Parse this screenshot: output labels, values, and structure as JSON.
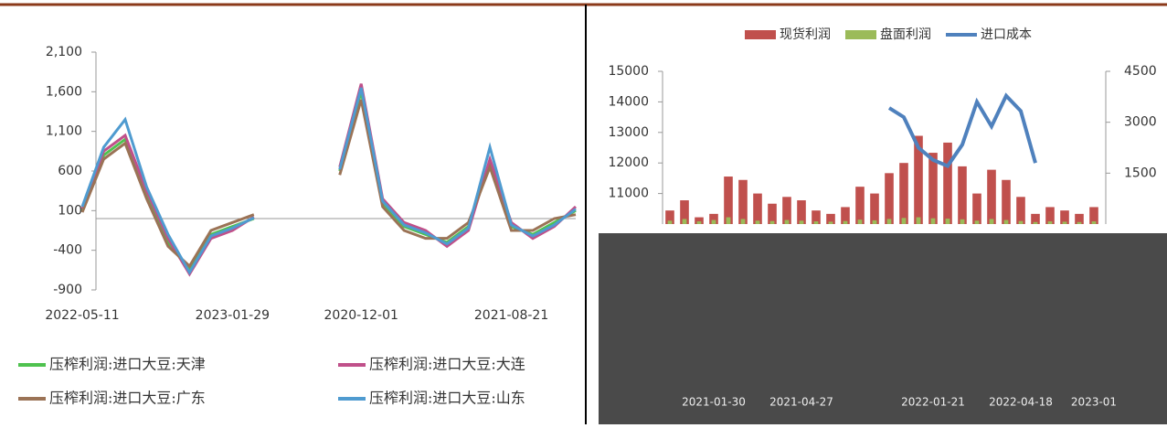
{
  "chart_data": [
    {
      "type": "line",
      "categories": [
        "2022-05-11",
        null,
        null,
        null,
        null,
        null,
        null,
        "2023-01-29",
        null,
        null,
        null,
        null,
        null,
        "2020-12-01",
        null,
        null,
        null,
        null,
        null,
        null,
        "2021-08-21",
        null,
        null,
        null
      ],
      "ylim": [
        -900,
        2100
      ],
      "yticks": [
        -900,
        -400,
        100,
        600,
        {
          "value": 1100,
          "label": "1,100"
        },
        {
          "value": 1600,
          "label": "1,600"
        },
        {
          "value": 2100,
          "label": "2,100"
        }
      ],
      "series": [
        {
          "name": "压榨利润:进口大豆:天津",
          "color": "#4fc24f",
          "values": [
            100,
            800,
            1000,
            300,
            -300,
            -650,
            -200,
            -100,
            0,
            null,
            null,
            null,
            600,
            1600,
            200,
            -100,
            -200,
            -300,
            -100,
            700,
            -100,
            -200,
            -50,
            100
          ]
        },
        {
          "name": "压榨利润:进口大豆:大连",
          "color": "#c0508a",
          "values": [
            120,
            850,
            1050,
            350,
            -250,
            -700,
            -250,
            -150,
            20,
            null,
            null,
            null,
            650,
            1700,
            250,
            -50,
            -150,
            -350,
            -150,
            750,
            -50,
            -250,
            -100,
            150
          ]
        },
        {
          "name": "压榨利润:进口大豆:广东",
          "color": "#9b7356",
          "values": [
            80,
            750,
            950,
            250,
            -350,
            -600,
            -150,
            -50,
            50,
            null,
            null,
            null,
            550,
            1500,
            150,
            -150,
            -250,
            -250,
            -50,
            650,
            -150,
            -150,
            0,
            50
          ]
        },
        {
          "name": "压榨利润:进口大豆:山东",
          "color": "#4f9bd0",
          "values": [
            150,
            900,
            1250,
            400,
            -200,
            -680,
            -220,
            -120,
            10,
            null,
            null,
            null,
            620,
            1650,
            220,
            -80,
            -180,
            -320,
            -120,
            900,
            -80,
            -220,
            -80,
            120
          ]
        }
      ]
    },
    {
      "type": "combo",
      "categories": [
        null,
        null,
        null,
        "2021-01-30",
        null,
        null,
        null,
        null,
        null,
        "2021-04-27",
        null,
        null,
        null,
        null,
        null,
        null,
        null,
        null,
        "2022-01-21",
        null,
        null,
        null,
        null,
        null,
        "2022-04-18",
        null,
        null,
        null,
        null,
        "2023-01"
      ],
      "ylim": [
        10000,
        15000
      ],
      "yticks": [
        11000,
        12000,
        13000,
        14000,
        15000
      ],
      "y2lim": [
        0,
        4500
      ],
      "y2ticks": [
        1500,
        3000,
        4500
      ],
      "series": [
        {
          "name": "现货利润",
          "color": "#c0504d",
          "axis": "y2",
          "values": [
            400,
            700,
            200,
            300,
            1400,
            1300,
            900,
            600,
            800,
            700,
            400,
            300,
            500,
            1100,
            900,
            1500,
            1800,
            2600,
            2100,
            2400,
            1700,
            900,
            1600,
            1300,
            800,
            300,
            500,
            400,
            300,
            500
          ]
        },
        {
          "name": "盘面利润",
          "color": "#9bbb59",
          "axis": "y2",
          "values": [
            100,
            150,
            80,
            120,
            200,
            150,
            100,
            90,
            120,
            100,
            80,
            70,
            90,
            130,
            110,
            150,
            180,
            200,
            170,
            160,
            140,
            100,
            150,
            120,
            90,
            60,
            80,
            70,
            60,
            80
          ]
        },
        {
          "name": "进口成本",
          "color": "#4f81bd",
          "values": [
            null,
            null,
            null,
            null,
            null,
            null,
            null,
            null,
            null,
            null,
            null,
            null,
            null,
            null,
            null,
            13800,
            13500,
            12500,
            12100,
            11900,
            12600,
            14000,
            13200,
            14200,
            13700,
            12000,
            null,
            null,
            null,
            null
          ]
        }
      ]
    }
  ]
}
